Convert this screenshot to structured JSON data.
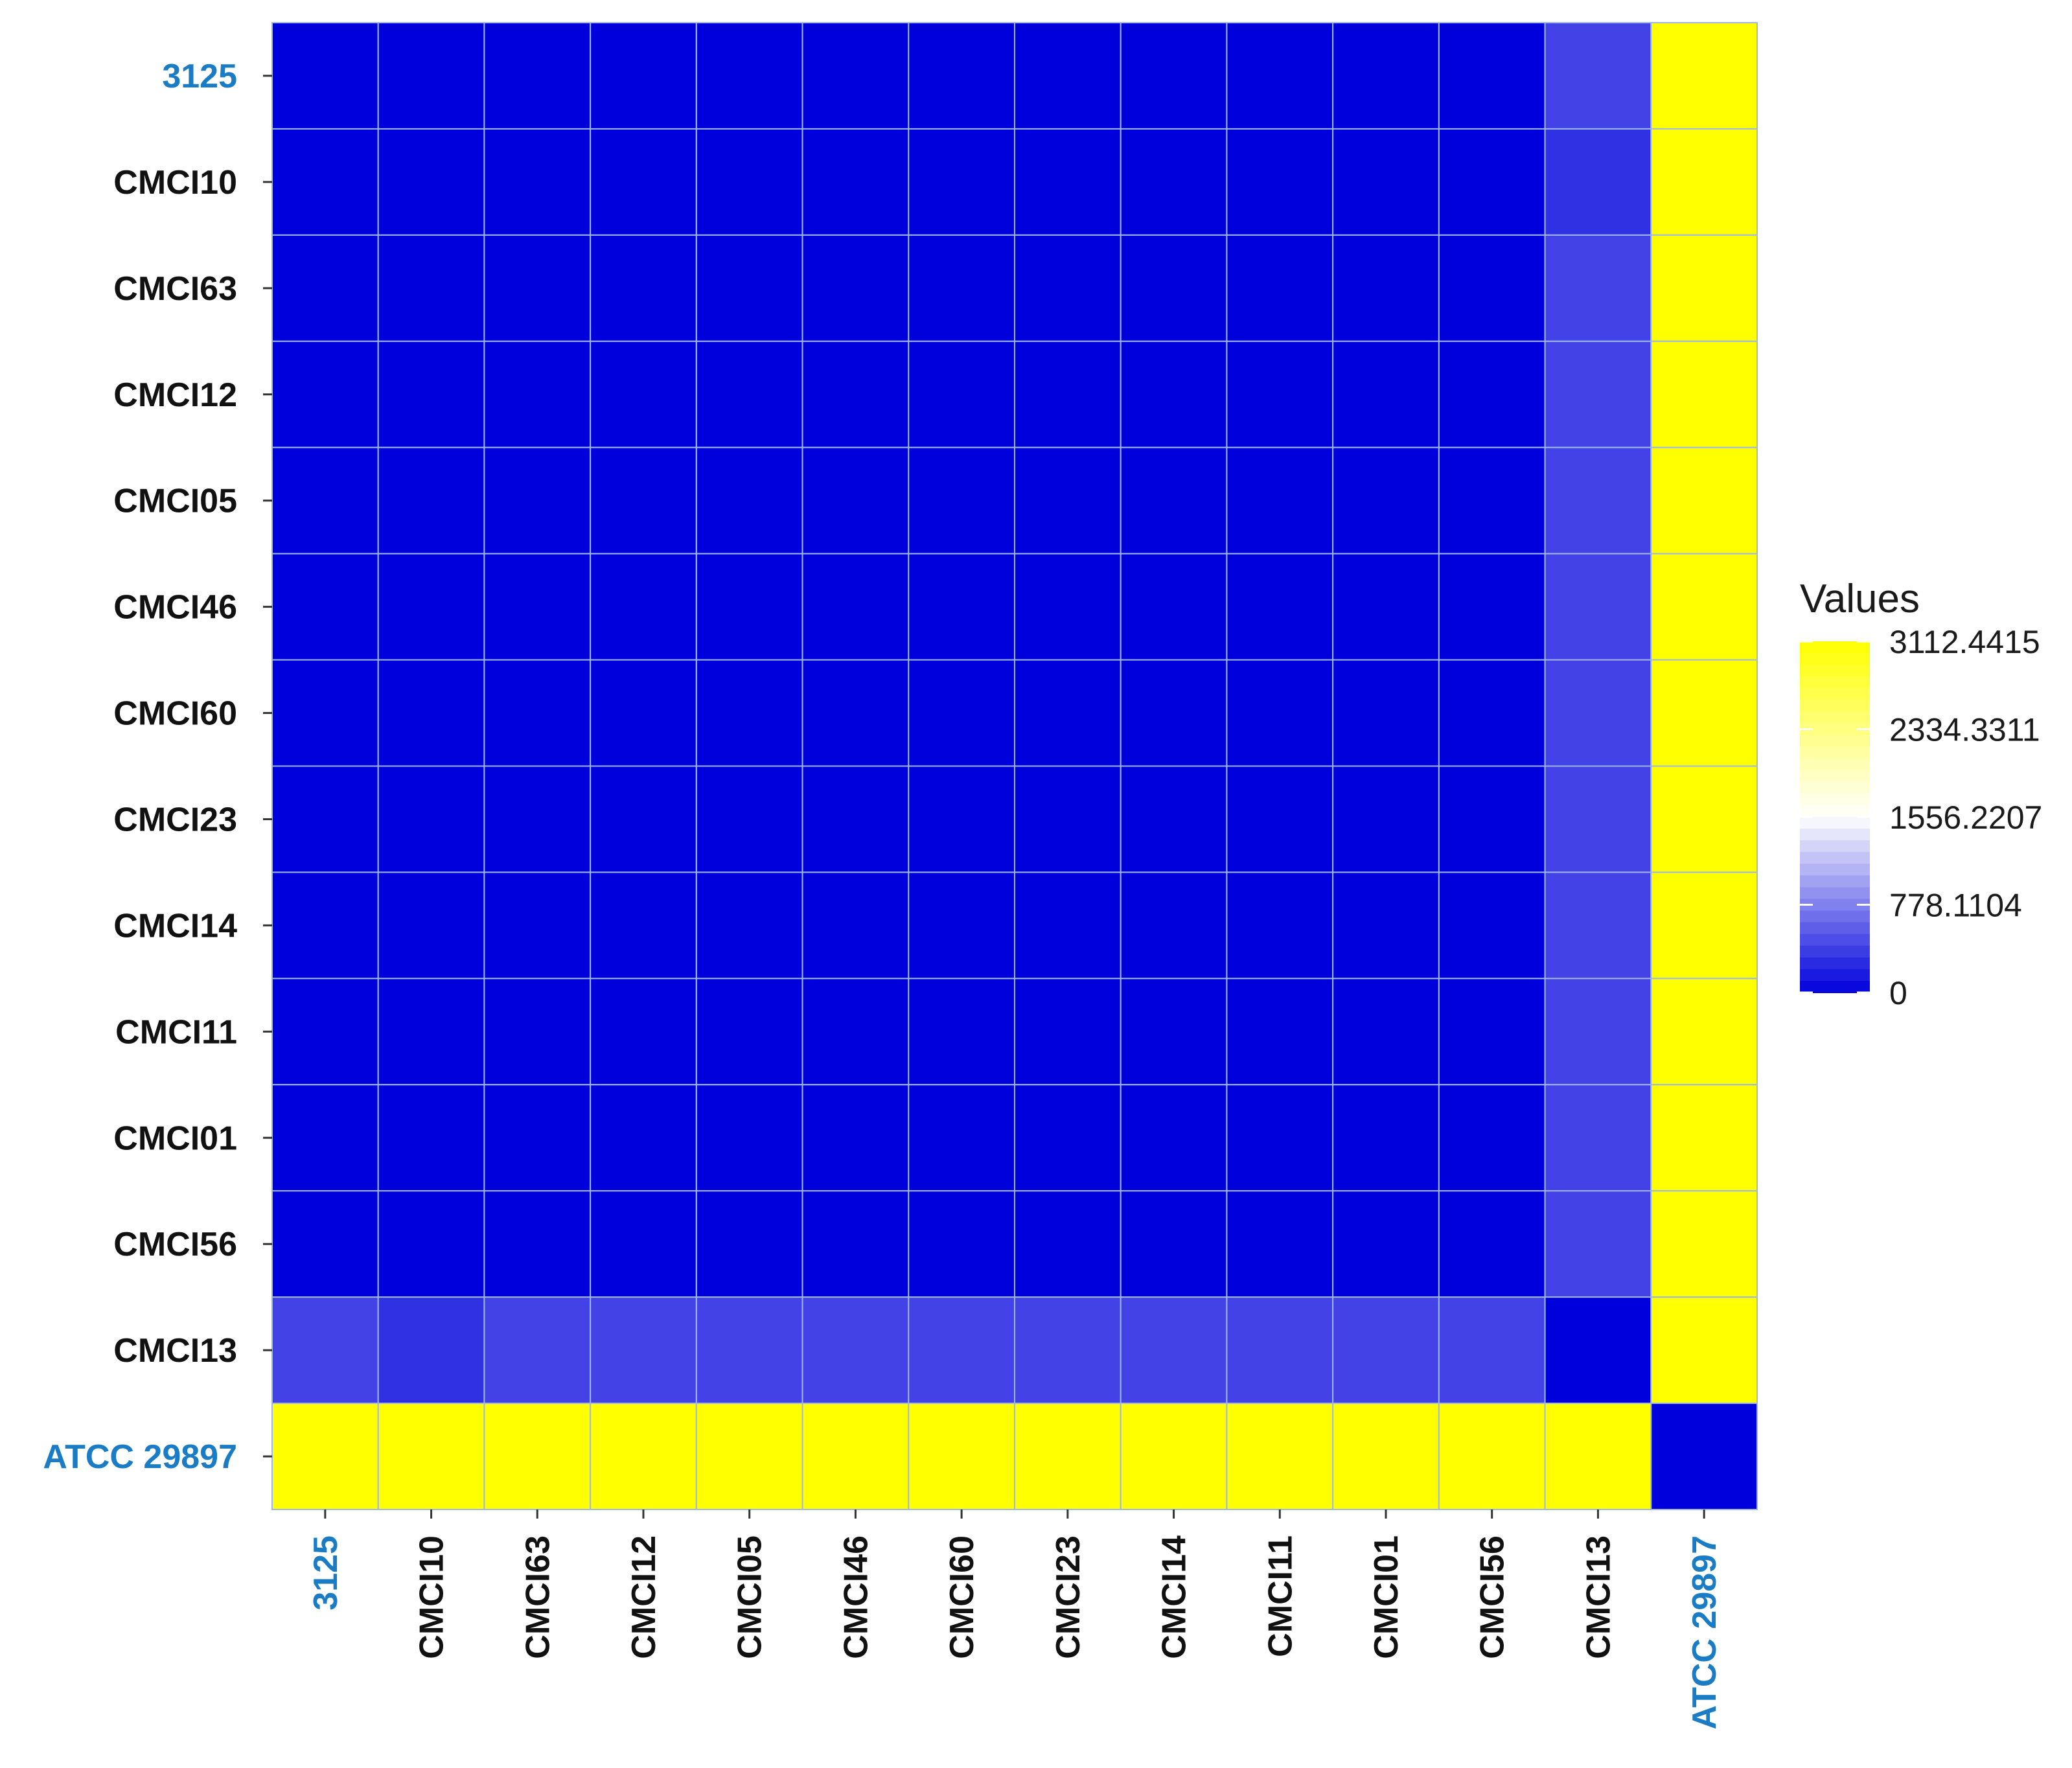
{
  "chart_data": {
    "type": "heatmap",
    "rows": [
      "3125",
      "CMCI10",
      "CMCI63",
      "CMCI12",
      "CMCI05",
      "CMCI46",
      "CMCI60",
      "CMCI23",
      "CMCI14",
      "CMCI11",
      "CMCI01",
      "CMCI56",
      "CMCI13",
      "ATCC 29897"
    ],
    "columns": [
      "3125",
      "CMCI10",
      "CMCI63",
      "CMCI12",
      "CMCI05",
      "CMCI46",
      "CMCI60",
      "CMCI23",
      "CMCI14",
      "CMCI11",
      "CMCI01",
      "CMCI56",
      "CMCI13",
      "ATCC 29897"
    ],
    "highlight_labels": [
      "3125",
      "ATCC 29897"
    ],
    "values": [
      [
        0,
        0,
        0,
        0,
        0,
        0,
        0,
        0,
        0,
        0,
        0,
        0,
        400,
        3112.4415
      ],
      [
        0,
        0,
        0,
        0,
        0,
        0,
        0,
        0,
        0,
        0,
        0,
        0,
        300,
        3112.4415
      ],
      [
        0,
        0,
        0,
        0,
        0,
        0,
        0,
        0,
        0,
        0,
        0,
        0,
        400,
        3112.4415
      ],
      [
        0,
        0,
        0,
        0,
        0,
        0,
        0,
        0,
        0,
        0,
        0,
        0,
        400,
        3112.4415
      ],
      [
        0,
        0,
        0,
        0,
        0,
        0,
        0,
        0,
        0,
        0,
        0,
        0,
        400,
        3112.4415
      ],
      [
        0,
        0,
        0,
        0,
        0,
        0,
        0,
        0,
        0,
        0,
        0,
        0,
        400,
        3112.4415
      ],
      [
        0,
        0,
        0,
        0,
        0,
        0,
        0,
        0,
        0,
        0,
        0,
        0,
        400,
        3112.4415
      ],
      [
        0,
        0,
        0,
        0,
        0,
        0,
        0,
        0,
        0,
        0,
        0,
        0,
        400,
        3112.4415
      ],
      [
        0,
        0,
        0,
        0,
        0,
        0,
        0,
        0,
        0,
        0,
        0,
        0,
        400,
        3112.4415
      ],
      [
        0,
        0,
        0,
        0,
        0,
        0,
        0,
        0,
        0,
        0,
        0,
        0,
        400,
        3112.4415
      ],
      [
        0,
        0,
        0,
        0,
        0,
        0,
        0,
        0,
        0,
        0,
        0,
        0,
        400,
        3112.4415
      ],
      [
        0,
        0,
        0,
        0,
        0,
        0,
        0,
        0,
        0,
        0,
        0,
        0,
        400,
        3112.4415
      ],
      [
        400,
        300,
        400,
        400,
        400,
        400,
        400,
        400,
        400,
        400,
        400,
        400,
        0,
        3112.4415
      ],
      [
        3112.4415,
        3112.4415,
        3112.4415,
        3112.4415,
        3112.4415,
        3112.4415,
        3112.4415,
        3112.4415,
        3112.4415,
        3112.4415,
        3112.4415,
        3112.4415,
        3112.4415,
        0
      ]
    ],
    "legend": {
      "title": "Values",
      "ticks": [
        "3112.4415",
        "2334.3311",
        "1556.2207",
        "778.1104",
        "0"
      ],
      "tick_values": [
        3112.4415,
        2334.3311,
        1556.2207,
        778.1104,
        0
      ],
      "range": [
        0,
        3112.4415
      ],
      "placement": "right"
    },
    "colors": {
      "low": "#0000dd",
      "mid": "#ffffff",
      "high": "#ffff00",
      "grid": "#9fb7e8",
      "label_default": "#111111",
      "label_highlight": "#1a7cc4"
    }
  }
}
